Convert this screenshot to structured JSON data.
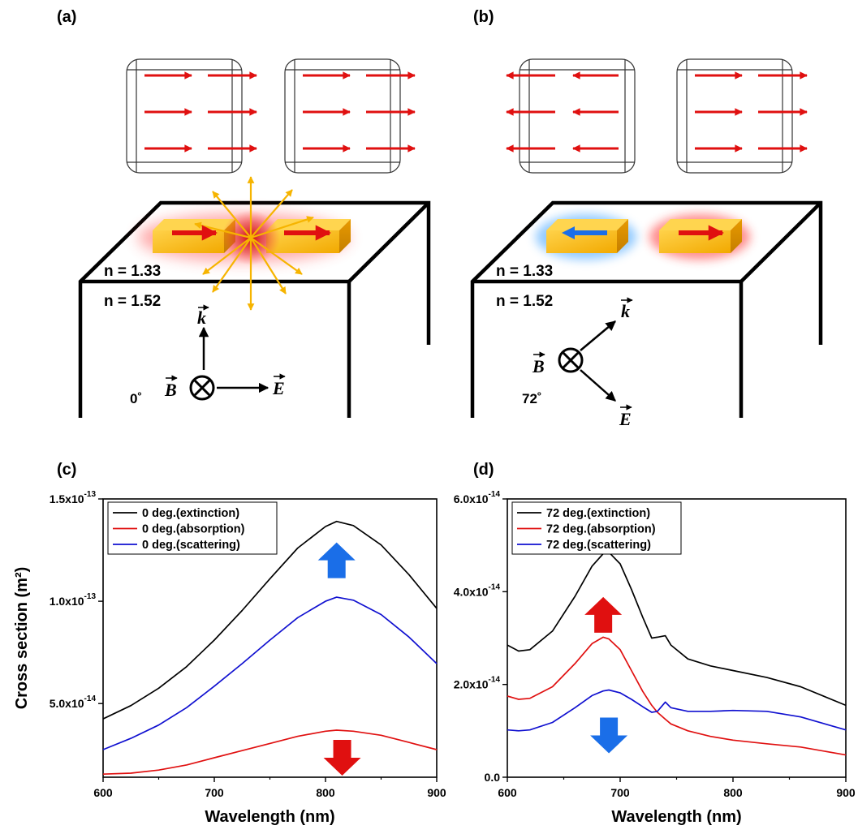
{
  "panels": {
    "a": {
      "label": "(a)",
      "n_top": "n = 1.33",
      "n_bottom": "n = 1.52",
      "angle": "0˚",
      "k": "k",
      "B": "B",
      "E": "E"
    },
    "b": {
      "label": "(b)",
      "n_top": "n = 1.33",
      "n_bottom": "n = 1.52",
      "angle": "72˚",
      "k": "k",
      "B": "B",
      "E": "E"
    },
    "c": {
      "label": "(c)"
    },
    "d": {
      "label": "(d)"
    }
  },
  "colors": {
    "arrow_red": "#e01010",
    "arrow_blue": "#1a6ee8",
    "gold": "#f2a900",
    "ray": "#f6b400",
    "extinction": "#000000",
    "absorption": "#e01010",
    "scattering": "#1010d0"
  },
  "chart_data": [
    {
      "type": "line",
      "panel": "(c)",
      "xlabel": "Wavelength (nm)",
      "ylabel": "Cross section (m²)",
      "xlim": [
        600,
        900
      ],
      "ylim": [
        1.4e-14,
        1.5e-13
      ],
      "x_ticks": [
        600,
        700,
        800,
        900
      ],
      "x_tick_labels": [
        "600",
        "700",
        "800",
        "900"
      ],
      "y_ticks": [
        5e-14,
        1e-13,
        1.5e-13
      ],
      "y_tick_labels": [
        {
          "base": "5.0x10",
          "exp": "-14"
        },
        {
          "base": "1.0x10",
          "exp": "-13"
        },
        {
          "base": "1.5x10",
          "exp": "-13"
        }
      ],
      "legend_position": "top-left",
      "x": [
        600,
        625,
        650,
        675,
        700,
        725,
        750,
        775,
        800,
        810,
        825,
        850,
        875,
        900
      ],
      "series": [
        {
          "name": "0 deg.(extinction)",
          "color": "#000000",
          "values": [
            4.25e-14,
            4.9e-14,
            5.75e-14,
            6.8e-14,
            8.1e-14,
            9.55e-14,
            1.11e-13,
            1.26e-13,
            1.365e-13,
            1.39e-13,
            1.37e-13,
            1.275e-13,
            1.13e-13,
            9.65e-14
          ]
        },
        {
          "name": "0 deg.(absorption)",
          "color": "#e01010",
          "values": [
            1.55e-14,
            1.6e-14,
            1.75e-14,
            2e-14,
            2.35e-14,
            2.7e-14,
            3.05e-14,
            3.4e-14,
            3.65e-14,
            3.7e-14,
            3.65e-14,
            3.45e-14,
            3.1e-14,
            2.75e-14
          ]
        },
        {
          "name": "0 deg.(scattering)",
          "color": "#1010d0",
          "values": [
            2.75e-14,
            3.3e-14,
            3.95e-14,
            4.8e-14,
            5.85e-14,
            6.95e-14,
            8.1e-14,
            9.2e-14,
            1e-13,
            1.02e-13,
            1.005e-13,
            9.35e-14,
            8.25e-14,
            6.95e-14
          ]
        }
      ],
      "annotations": [
        {
          "shape": "arrow-up",
          "color": "#1a6ee8",
          "x": 810,
          "y": 1.2e-13
        },
        {
          "shape": "arrow-down",
          "color": "#e01010",
          "x": 815,
          "y": 2.35e-14
        }
      ]
    },
    {
      "type": "line",
      "panel": "(d)",
      "xlabel": "Wavelength (nm)",
      "ylabel": "",
      "xlim": [
        600,
        900
      ],
      "ylim": [
        0,
        6e-14
      ],
      "x_ticks": [
        600,
        700,
        800,
        900
      ],
      "x_tick_labels": [
        "600",
        "700",
        "800",
        "900"
      ],
      "y_ticks": [
        0,
        2e-14,
        4e-14,
        6e-14
      ],
      "y_tick_labels": [
        {
          "base": "0.0",
          "exp": ""
        },
        {
          "base": "2.0x10",
          "exp": "-14"
        },
        {
          "base": "4.0x10",
          "exp": "-14"
        },
        {
          "base": "6.0x10",
          "exp": "-14"
        }
      ],
      "legend_position": "top-left",
      "x": [
        600,
        610,
        620,
        640,
        660,
        675,
        685,
        690,
        700,
        710,
        720,
        728,
        733,
        740,
        745,
        760,
        780,
        800,
        830,
        860,
        900
      ],
      "series": [
        {
          "name": "72 deg.(extinction)",
          "color": "#000000",
          "values": [
            2.85e-14,
            2.72e-14,
            2.75e-14,
            3.15e-14,
            3.9e-14,
            4.55e-14,
            4.82e-14,
            4.85e-14,
            4.6e-14,
            4.05e-14,
            3.45e-14,
            3e-14,
            3.02e-14,
            3.05e-14,
            2.85e-14,
            2.55e-14,
            2.4e-14,
            2.3e-14,
            2.15e-14,
            1.95e-14,
            1.55e-14
          ]
        },
        {
          "name": "72 deg.(absorption)",
          "color": "#e01010",
          "values": [
            1.75e-14,
            1.68e-14,
            1.7e-14,
            1.95e-14,
            2.45e-14,
            2.88e-14,
            3.02e-14,
            2.98e-14,
            2.75e-14,
            2.3e-14,
            1.85e-14,
            1.55e-14,
            1.4e-14,
            1.25e-14,
            1.15e-14,
            1e-14,
            8.8e-15,
            8e-15,
            7.2e-15,
            6.5e-15,
            4.8e-15
          ]
        },
        {
          "name": "72 deg.(scattering)",
          "color": "#1010d0",
          "values": [
            1.02e-14,
            1e-14,
            1.02e-14,
            1.18e-14,
            1.5e-14,
            1.76e-14,
            1.86e-14,
            1.88e-14,
            1.82e-14,
            1.68e-14,
            1.52e-14,
            1.4e-14,
            1.42e-14,
            1.62e-14,
            1.5e-14,
            1.42e-14,
            1.42e-14,
            1.44e-14,
            1.42e-14,
            1.3e-14,
            1.02e-14
          ]
        }
      ],
      "annotations": [
        {
          "shape": "arrow-up",
          "color": "#e01010",
          "x": 685,
          "y": 3.5e-14
        },
        {
          "shape": "arrow-down",
          "color": "#1a6ee8",
          "x": 690,
          "y": 9e-15
        }
      ]
    }
  ]
}
